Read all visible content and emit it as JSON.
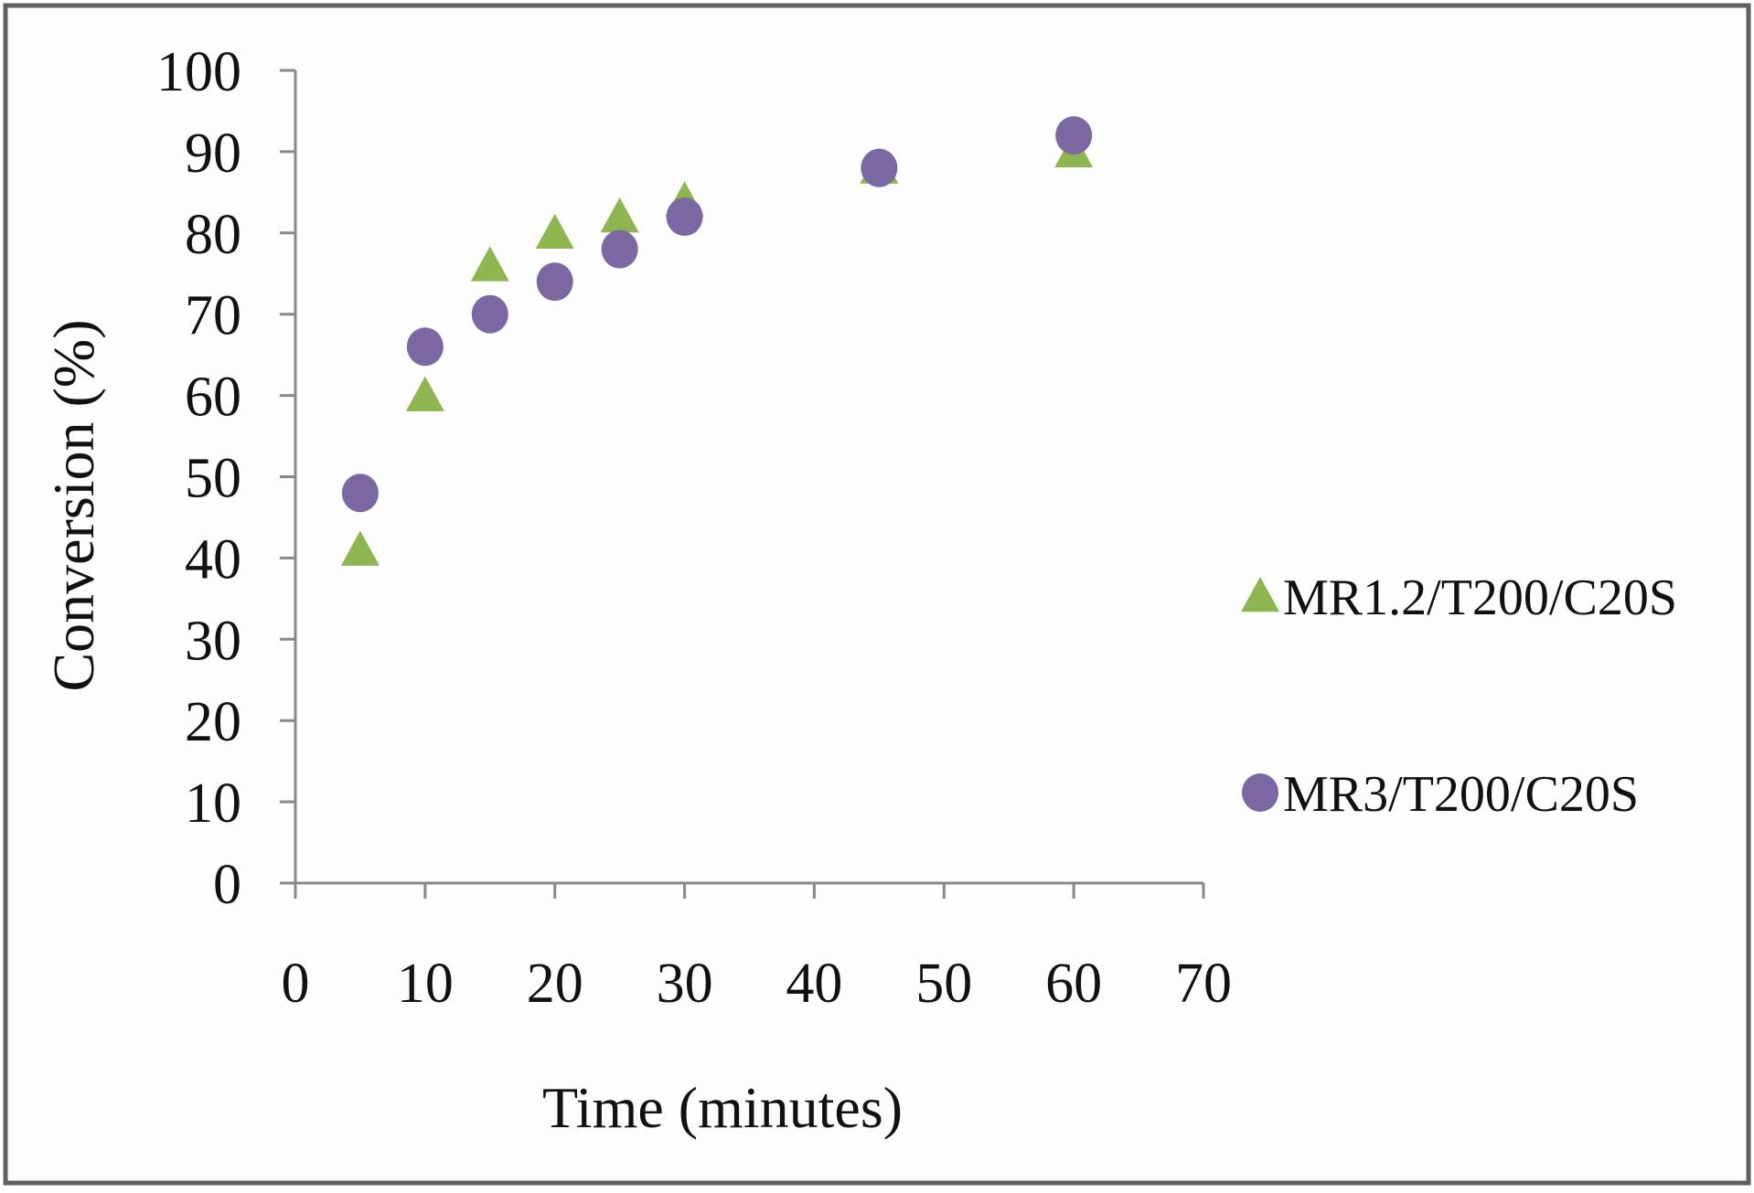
{
  "chart_data": {
    "type": "scatter",
    "title": "",
    "xlabel": "Time (minutes)",
    "ylabel": "Conversion (%)",
    "xlim": [
      0,
      70
    ],
    "ylim": [
      0,
      100
    ],
    "x_ticks": [
      "0",
      "10",
      "20",
      "30",
      "40",
      "50",
      "60",
      "70"
    ],
    "y_ticks": [
      "0",
      "10",
      "20",
      "30",
      "40",
      "50",
      "60",
      "70",
      "80",
      "90",
      "100"
    ],
    "grid": false,
    "legend_position": "right",
    "series": [
      {
        "name": "MR1.2/T200/C20S",
        "marker": "triangle",
        "color": "#8DB650",
        "x": [
          5,
          10,
          15,
          20,
          25,
          30,
          45,
          60
        ],
        "y": [
          41,
          60,
          76,
          80,
          82,
          84,
          88,
          90
        ]
      },
      {
        "name": "MR3/T200/C20S",
        "marker": "circle",
        "color": "#7B67A2",
        "x": [
          5,
          10,
          15,
          20,
          25,
          30,
          45,
          60
        ],
        "y": [
          48,
          66,
          70,
          74,
          78,
          82,
          88,
          92
        ]
      }
    ]
  }
}
